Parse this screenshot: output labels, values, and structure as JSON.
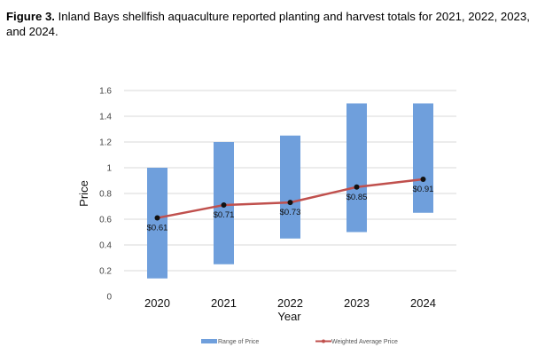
{
  "caption": {
    "label": "Figure 3.",
    "text": "Inland Bays shellfish aquaculture reported planting and harvest totals for 2021, 2022, 2023, and 2024."
  },
  "chart_data": {
    "type": "bar",
    "title": "",
    "xlabel": "Year",
    "ylabel": "Price",
    "ylim": [
      0,
      1.6
    ],
    "yticks": [
      0,
      0.2,
      0.4,
      0.6,
      0.8,
      1,
      1.2,
      1.4,
      1.6
    ],
    "ytick_labels": [
      "0",
      "0.2",
      "0.4",
      "0.6",
      "0.8",
      "1",
      "1.2",
      "1.4",
      "1.6"
    ],
    "grid": true,
    "categories": [
      "2020",
      "2021",
      "2022",
      "2023",
      "2024"
    ],
    "series": [
      {
        "name": "Range of Price",
        "kind": "floating-bar",
        "color": "#6f9fdc",
        "low": [
          0.14,
          0.25,
          0.45,
          0.5,
          0.65
        ],
        "high": [
          1.0,
          1.2,
          1.25,
          1.5,
          1.5
        ]
      },
      {
        "name": "Weighted Average Price",
        "kind": "line",
        "color": "#c0504d",
        "marker_color": "#111111",
        "values": [
          0.61,
          0.71,
          0.73,
          0.85,
          0.91
        ],
        "labels": [
          "$0.61",
          "$0.71",
          "$0.73",
          "$0.85",
          "$0.91"
        ]
      }
    ],
    "legend_position": "bottom"
  }
}
